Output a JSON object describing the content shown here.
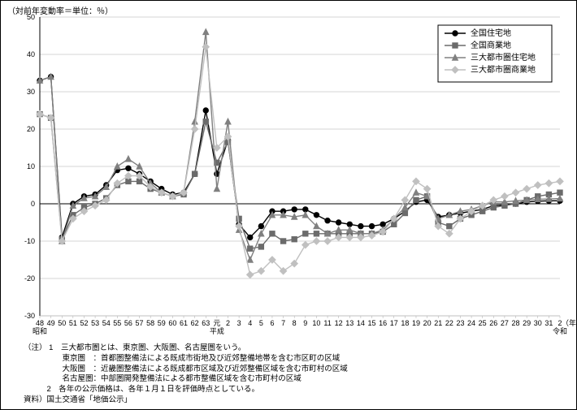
{
  "y_title": "（対前年変動率＝単位：％）",
  "x_unit_label": "（年）",
  "x_era_labels": [
    {
      "text": "昭和",
      "x": 48
    },
    {
      "text": "平成",
      "x_tick": "元"
    },
    {
      "text": "令和",
      "x_tick": "2"
    }
  ],
  "legend": {
    "items": [
      {
        "label": "全国住宅地",
        "color": "#000000",
        "marker": "circle"
      },
      {
        "label": "全国商業地",
        "color": "#6b6b6b",
        "marker": "square"
      },
      {
        "label": "三大都市圏住宅地",
        "color": "#808080",
        "marker": "triangle"
      },
      {
        "label": "三大都市圏商業地",
        "color": "#c0c0c0",
        "marker": "diamond"
      }
    ]
  },
  "chart": {
    "type": "line",
    "ylim": [
      -30,
      50
    ],
    "ytick_step": 10,
    "x_ticks": [
      "48",
      "49",
      "50",
      "51",
      "52",
      "53",
      "54",
      "55",
      "56",
      "57",
      "58",
      "59",
      "60",
      "61",
      "62",
      "63",
      "元",
      "2",
      "3",
      "4",
      "5",
      "6",
      "7",
      "8",
      "9",
      "10",
      "11",
      "12",
      "13",
      "14",
      "15",
      "16",
      "17",
      "18",
      "19",
      "20",
      "21",
      "22",
      "23",
      "24",
      "25",
      "26",
      "27",
      "28",
      "29",
      "30",
      "31",
      "2"
    ],
    "background_color": "#ffffff",
    "grid_color": "#aaaaaa",
    "line_width": 1.4,
    "marker_size": 3.2,
    "series": [
      {
        "name": "全国住宅地",
        "color": "#000000",
        "marker": "circle",
        "values": [
          33,
          34,
          -9,
          0,
          2,
          2.5,
          5,
          9,
          9.5,
          8,
          6,
          4,
          2.5,
          3,
          8,
          25,
          8,
          17,
          -5.5,
          -9,
          -6,
          -2,
          -2,
          -1.5,
          -1.5,
          -3,
          -4.5,
          -5,
          -5.5,
          -6,
          -6,
          -5.5,
          -4,
          -2,
          0.5,
          1,
          -3.5,
          -3,
          -2.5,
          -2,
          -1.5,
          -0.5,
          -0.3,
          0,
          0.5,
          0.7,
          0.8,
          0.8
        ]
      },
      {
        "name": "全国商業地",
        "color": "#6b6b6b",
        "marker": "square",
        "values": [
          24,
          23,
          -9.5,
          -3,
          -1,
          0,
          1.5,
          5,
          6,
          6,
          4,
          3,
          2,
          2.5,
          8,
          22,
          11,
          16.5,
          -4,
          -12,
          -11.5,
          -8,
          -10,
          -9.5,
          -8,
          -8,
          -8,
          -8,
          -8,
          -8,
          -8,
          -7.5,
          -5.5,
          -2.5,
          1,
          2,
          -5,
          -6,
          -4,
          -3,
          -2,
          -1,
          -0.5,
          0,
          1,
          2,
          2.5,
          3
        ]
      },
      {
        "name": "三大都市圏住宅地",
        "color": "#808080",
        "marker": "triangle",
        "values": [
          33,
          34,
          -10,
          -0.5,
          1.5,
          2,
          4.5,
          10,
          12,
          10,
          5.5,
          3,
          2,
          3,
          22,
          46,
          4,
          22,
          -7,
          -15,
          -8,
          -3,
          -3,
          -3.5,
          -3,
          -6,
          -8,
          -7,
          -7,
          -8,
          -8,
          -7,
          -4,
          -1,
          3,
          2,
          -4,
          -3,
          -2,
          -1.5,
          -0.5,
          0.5,
          0.5,
          0.8,
          1,
          1.2,
          1.3,
          1.4
        ]
      },
      {
        "name": "三大都市圏商業地",
        "color": "#c0c0c0",
        "marker": "diamond",
        "values": [
          24,
          23,
          -10,
          -4,
          -2,
          -0.5,
          1,
          5.5,
          7.5,
          7.5,
          4.5,
          3,
          2,
          3,
          20,
          42,
          15,
          18,
          -6,
          -19,
          -18,
          -15,
          -18,
          -16,
          -11,
          -10,
          -10,
          -9,
          -9,
          -9,
          -8.5,
          -7.5,
          -4,
          1,
          6,
          4,
          -6,
          -8,
          -4,
          -2,
          -0.5,
          1,
          2,
          3,
          4,
          5,
          5.5,
          6
        ]
      }
    ]
  },
  "notes": {
    "heading": "（注）",
    "items": [
      "1　三大都市圏とは、東京圏、大阪圏、名古屋圏をいう。",
      "　　東京圏　：首都圏整備法による既成市街地及び近郊整備地帯を含む市区町の区域",
      "　　大阪圏　：近畿圏整備法による既成都市区域及び近郊整備区域を含む市町村の区域",
      "　　名古屋圏：中部圏開発整備法による都市整備区域を含む市町村の区域",
      "2　各年の公示価格は、各年１月１日を評価時点としている。"
    ],
    "source_label": "資料）",
    "source_text": "国土交通省「地価公示」"
  }
}
